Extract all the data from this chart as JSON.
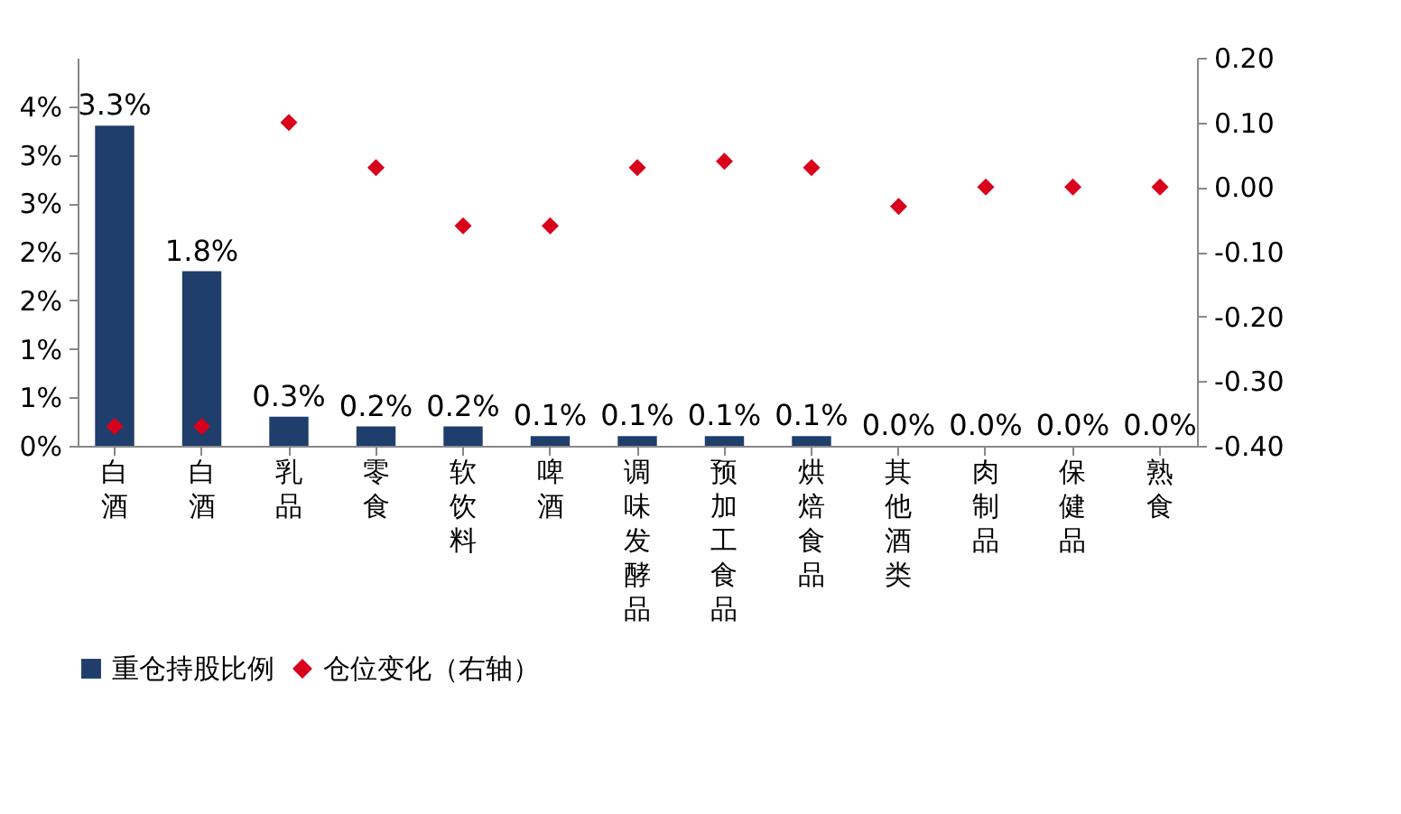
{
  "chart_data": {
    "type": "bar",
    "categories": [
      "白酒",
      "白酒",
      "乳品",
      "零食",
      "软饮料",
      "啤酒",
      "调味发酵品",
      "预加工食品",
      "烘焙食品",
      "其他酒类",
      "肉制品",
      "保健品",
      "熟食"
    ],
    "series": [
      {
        "name": "重仓持股比例",
        "type": "bar",
        "color": "#1f3e6c",
        "values": [
          3.3,
          1.8,
          0.3,
          0.2,
          0.2,
          0.1,
          0.1,
          0.1,
          0.1,
          0.0,
          0.0,
          0.0,
          0.0
        ],
        "value_labels": [
          "3.3%",
          "1.8%",
          "0.3%",
          "0.2%",
          "0.2%",
          "0.1%",
          "0.1%",
          "0.1%",
          "0.1%",
          "0.0%",
          "0.0%",
          "0.0%",
          "0.0%"
        ]
      },
      {
        "name": "仓位变化（右轴）",
        "type": "scatter",
        "axis": "y2",
        "marker": "diamond",
        "color": "#d9001b",
        "values": [
          -0.37,
          -0.37,
          0.1,
          0.03,
          -0.06,
          -0.06,
          0.03,
          0.04,
          0.03,
          -0.03,
          0.0,
          0.0,
          0.0
        ]
      }
    ],
    "ylim": [
      0,
      4
    ],
    "yticks": [
      {
        "value": 0,
        "label": "0%"
      },
      {
        "value": 0.5,
        "label": "1%"
      },
      {
        "value": 1,
        "label": "1%"
      },
      {
        "value": 1.5,
        "label": "2%"
      },
      {
        "value": 2,
        "label": "2%"
      },
      {
        "value": 2.5,
        "label": "3%"
      },
      {
        "value": 3,
        "label": "3%"
      },
      {
        "value": 3.5,
        "label": "4%"
      }
    ],
    "y2lim": [
      -0.4,
      0.2
    ],
    "y2ticks": [
      {
        "value": -0.4,
        "label": "-0.40"
      },
      {
        "value": -0.3,
        "label": "-0.30"
      },
      {
        "value": -0.2,
        "label": "-0.20"
      },
      {
        "value": -0.1,
        "label": "-0.10"
      },
      {
        "value": 0,
        "label": "0.00"
      },
      {
        "value": 0.1,
        "label": "0.10"
      },
      {
        "value": 0.2,
        "label": "0.20"
      }
    ],
    "legend": "bottom",
    "grid": false
  }
}
